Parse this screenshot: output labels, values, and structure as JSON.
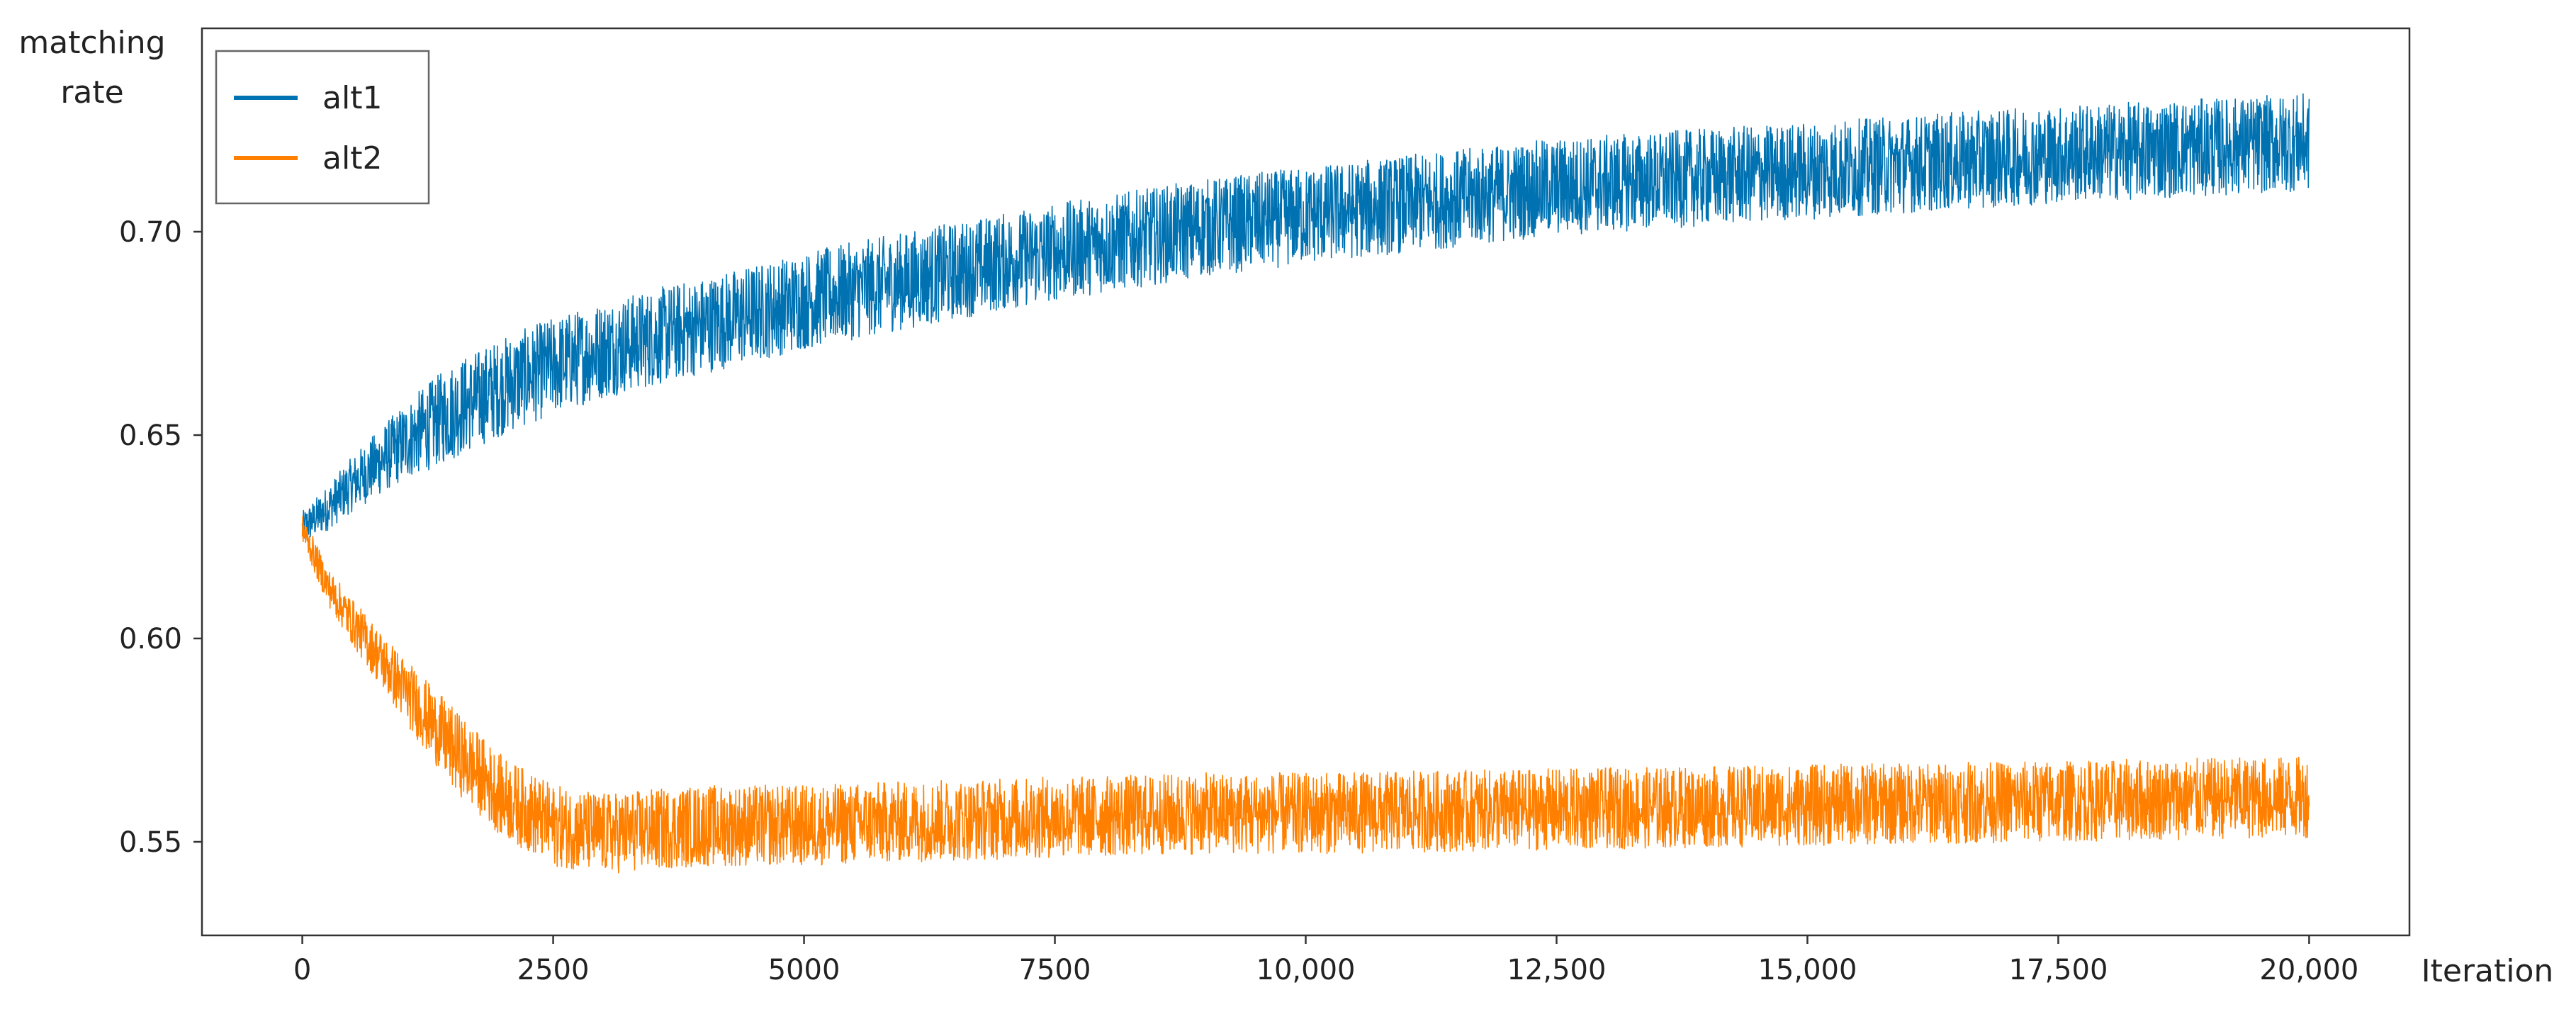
{
  "chart_data": {
    "type": "line",
    "title": "",
    "xlabel": "Iteration",
    "ylabel": [
      "matching",
      "rate"
    ],
    "xlim": [
      -1000,
      21000
    ],
    "ylim": [
      0.527,
      0.75
    ],
    "grid": false,
    "legend_position": "top-left",
    "x_ticks": [
      0,
      2500,
      5000,
      7500,
      10000,
      12500,
      15000,
      17500,
      20000
    ],
    "x_tick_labels": [
      "0",
      "2500",
      "5000",
      "7500",
      "10,000",
      "12,500",
      "15,000",
      "17,500",
      "20,000"
    ],
    "y_ticks": [
      0.55,
      0.6,
      0.65,
      0.7
    ],
    "y_tick_labels": [
      "0.55",
      "0.60",
      "0.65",
      "0.70"
    ],
    "x": [
      0,
      250,
      500,
      1000,
      1500,
      2000,
      2500,
      3000,
      3500,
      4000,
      5000,
      6000,
      7500,
      9000,
      10000,
      12500,
      15000,
      17500,
      20000
    ],
    "series": [
      {
        "name": "alt1",
        "color": "#0072b2",
        "values": [
          0.627,
          0.632,
          0.638,
          0.648,
          0.656,
          0.662,
          0.667,
          0.671,
          0.674,
          0.677,
          0.683,
          0.688,
          0.695,
          0.701,
          0.704,
          0.711,
          0.715,
          0.719,
          0.722
        ],
        "noise": 0.012
      },
      {
        "name": "alt2",
        "color": "#ff8000",
        "values": [
          0.627,
          0.613,
          0.604,
          0.588,
          0.573,
          0.561,
          0.554,
          0.552,
          0.553,
          0.554,
          0.554,
          0.555,
          0.556,
          0.557,
          0.557,
          0.558,
          0.559,
          0.56,
          0.561
        ],
        "noise": 0.01
      }
    ]
  }
}
